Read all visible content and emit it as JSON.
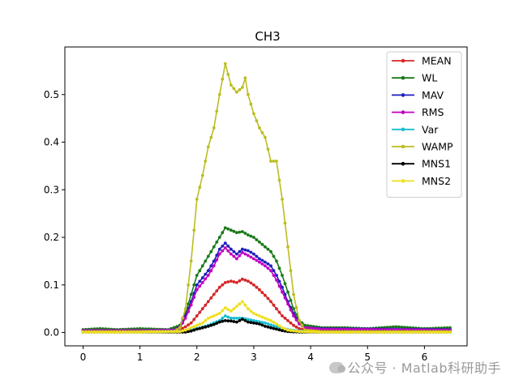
{
  "chart_data": {
    "type": "line",
    "title": "CH3",
    "xlabel": "",
    "ylabel": "",
    "xlim": [
      -0.32,
      6.75
    ],
    "ylim": [
      -0.028,
      0.6
    ],
    "xticks": [
      "0",
      "1",
      "2",
      "3",
      "4",
      "5",
      "6"
    ],
    "yticks": [
      "0.0",
      "0.1",
      "0.2",
      "0.3",
      "0.4",
      "0.5"
    ],
    "legend_position": "top-right",
    "grid": false,
    "series": [
      {
        "name": "MEAN",
        "color": "#d62728",
        "points": [
          [
            0,
            0.004
          ],
          [
            1,
            0.004
          ],
          [
            1.6,
            0.004
          ],
          [
            1.7,
            0.006
          ],
          [
            1.8,
            0.012
          ],
          [
            1.9,
            0.02
          ],
          [
            2.0,
            0.035
          ],
          [
            2.1,
            0.05
          ],
          [
            2.2,
            0.065
          ],
          [
            2.3,
            0.08
          ],
          [
            2.4,
            0.095
          ],
          [
            2.5,
            0.105
          ],
          [
            2.6,
            0.108
          ],
          [
            2.7,
            0.105
          ],
          [
            2.8,
            0.112
          ],
          [
            2.9,
            0.108
          ],
          [
            3.0,
            0.1
          ],
          [
            3.1,
            0.09
          ],
          [
            3.2,
            0.078
          ],
          [
            3.3,
            0.065
          ],
          [
            3.4,
            0.05
          ],
          [
            3.5,
            0.035
          ],
          [
            3.6,
            0.025
          ],
          [
            3.7,
            0.015
          ],
          [
            3.8,
            0.008
          ],
          [
            3.9,
            0.005
          ],
          [
            4.2,
            0.004
          ],
          [
            6.45,
            0.004
          ]
        ]
      },
      {
        "name": "WL",
        "color": "#1a7a1a",
        "points": [
          [
            0,
            0.006
          ],
          [
            0.3,
            0.008
          ],
          [
            0.6,
            0.006
          ],
          [
            1,
            0.008
          ],
          [
            1.5,
            0.006
          ],
          [
            1.7,
            0.015
          ],
          [
            1.8,
            0.04
          ],
          [
            1.9,
            0.08
          ],
          [
            2.0,
            0.12
          ],
          [
            2.1,
            0.14
          ],
          [
            2.2,
            0.16
          ],
          [
            2.3,
            0.18
          ],
          [
            2.4,
            0.2
          ],
          [
            2.5,
            0.22
          ],
          [
            2.6,
            0.215
          ],
          [
            2.7,
            0.21
          ],
          [
            2.8,
            0.212
          ],
          [
            2.9,
            0.205
          ],
          [
            3.0,
            0.2
          ],
          [
            3.1,
            0.19
          ],
          [
            3.2,
            0.18
          ],
          [
            3.3,
            0.17
          ],
          [
            3.4,
            0.15
          ],
          [
            3.5,
            0.12
          ],
          [
            3.6,
            0.085
          ],
          [
            3.7,
            0.05
          ],
          [
            3.8,
            0.025
          ],
          [
            3.9,
            0.015
          ],
          [
            4.2,
            0.01
          ],
          [
            4.6,
            0.01
          ],
          [
            5,
            0.008
          ],
          [
            5.5,
            0.012
          ],
          [
            6,
            0.008
          ],
          [
            6.45,
            0.01
          ]
        ]
      },
      {
        "name": "MAV",
        "color": "#1f1fbf",
        "points": [
          [
            0,
            0.004
          ],
          [
            1,
            0.004
          ],
          [
            1.6,
            0.005
          ],
          [
            1.7,
            0.012
          ],
          [
            1.8,
            0.035
          ],
          [
            1.9,
            0.065
          ],
          [
            2.0,
            0.1
          ],
          [
            2.1,
            0.115
          ],
          [
            2.2,
            0.13
          ],
          [
            2.3,
            0.15
          ],
          [
            2.4,
            0.175
          ],
          [
            2.5,
            0.188
          ],
          [
            2.6,
            0.175
          ],
          [
            2.7,
            0.165
          ],
          [
            2.8,
            0.175
          ],
          [
            2.9,
            0.172
          ],
          [
            3.0,
            0.165
          ],
          [
            3.1,
            0.155
          ],
          [
            3.2,
            0.148
          ],
          [
            3.3,
            0.14
          ],
          [
            3.4,
            0.12
          ],
          [
            3.5,
            0.095
          ],
          [
            3.6,
            0.065
          ],
          [
            3.7,
            0.04
          ],
          [
            3.8,
            0.02
          ],
          [
            3.9,
            0.01
          ],
          [
            4.2,
            0.008
          ],
          [
            6.45,
            0.006
          ]
        ]
      },
      {
        "name": "RMS",
        "color": "#c000c0",
        "points": [
          [
            0,
            0.004
          ],
          [
            1,
            0.004
          ],
          [
            1.6,
            0.005
          ],
          [
            1.7,
            0.01
          ],
          [
            1.8,
            0.03
          ],
          [
            1.9,
            0.058
          ],
          [
            2.0,
            0.09
          ],
          [
            2.1,
            0.105
          ],
          [
            2.2,
            0.12
          ],
          [
            2.3,
            0.14
          ],
          [
            2.4,
            0.165
          ],
          [
            2.5,
            0.178
          ],
          [
            2.6,
            0.165
          ],
          [
            2.7,
            0.155
          ],
          [
            2.8,
            0.168
          ],
          [
            2.9,
            0.162
          ],
          [
            3.0,
            0.155
          ],
          [
            3.1,
            0.148
          ],
          [
            3.2,
            0.14
          ],
          [
            3.3,
            0.13
          ],
          [
            3.4,
            0.11
          ],
          [
            3.5,
            0.085
          ],
          [
            3.6,
            0.06
          ],
          [
            3.7,
            0.035
          ],
          [
            3.8,
            0.018
          ],
          [
            3.9,
            0.01
          ],
          [
            4.2,
            0.007
          ],
          [
            6.45,
            0.005
          ]
        ]
      },
      {
        "name": "Var",
        "color": "#17becf",
        "points": [
          [
            0,
            0.002
          ],
          [
            1,
            0.002
          ],
          [
            1.8,
            0.003
          ],
          [
            2.0,
            0.008
          ],
          [
            2.2,
            0.015
          ],
          [
            2.4,
            0.025
          ],
          [
            2.5,
            0.035
          ],
          [
            2.6,
            0.03
          ],
          [
            2.8,
            0.03
          ],
          [
            3.0,
            0.025
          ],
          [
            3.2,
            0.02
          ],
          [
            3.4,
            0.012
          ],
          [
            3.6,
            0.006
          ],
          [
            3.8,
            0.003
          ],
          [
            4.2,
            0.002
          ],
          [
            6.45,
            0.002
          ]
        ]
      },
      {
        "name": "WAMP",
        "color": "#bcbd22",
        "points": [
          [
            0,
            0.002
          ],
          [
            1.6,
            0.002
          ],
          [
            1.7,
            0.01
          ],
          [
            1.8,
            0.05
          ],
          [
            1.9,
            0.15
          ],
          [
            2.0,
            0.28
          ],
          [
            2.1,
            0.33
          ],
          [
            2.2,
            0.39
          ],
          [
            2.3,
            0.43
          ],
          [
            2.4,
            0.5
          ],
          [
            2.5,
            0.565
          ],
          [
            2.6,
            0.52
          ],
          [
            2.7,
            0.505
          ],
          [
            2.8,
            0.515
          ],
          [
            2.85,
            0.535
          ],
          [
            2.9,
            0.5
          ],
          [
            3.0,
            0.46
          ],
          [
            3.1,
            0.43
          ],
          [
            3.2,
            0.41
          ],
          [
            3.3,
            0.36
          ],
          [
            3.4,
            0.36
          ],
          [
            3.5,
            0.28
          ],
          [
            3.6,
            0.18
          ],
          [
            3.7,
            0.08
          ],
          [
            3.8,
            0.025
          ],
          [
            3.9,
            0.005
          ],
          [
            4.2,
            0.002
          ],
          [
            6.45,
            0.002
          ]
        ]
      },
      {
        "name": "MNS1",
        "color": "#000000",
        "points": [
          [
            0,
            0.001
          ],
          [
            1,
            0.001
          ],
          [
            1.8,
            0.001
          ],
          [
            1.9,
            0.003
          ],
          [
            2.0,
            0.007
          ],
          [
            2.1,
            0.01
          ],
          [
            2.2,
            0.013
          ],
          [
            2.3,
            0.017
          ],
          [
            2.4,
            0.022
          ],
          [
            2.5,
            0.025
          ],
          [
            2.6,
            0.024
          ],
          [
            2.7,
            0.022
          ],
          [
            2.8,
            0.028
          ],
          [
            2.9,
            0.022
          ],
          [
            3.0,
            0.02
          ],
          [
            3.1,
            0.018
          ],
          [
            3.2,
            0.013
          ],
          [
            3.3,
            0.01
          ],
          [
            3.4,
            0.007
          ],
          [
            3.5,
            0.004
          ],
          [
            3.6,
            0.002
          ],
          [
            3.8,
            0.001
          ],
          [
            6.45,
            0.001
          ]
        ]
      },
      {
        "name": "MNS2",
        "color": "#f0e020",
        "points": [
          [
            0,
            0.001
          ],
          [
            1,
            0.001
          ],
          [
            1.7,
            0.002
          ],
          [
            1.8,
            0.005
          ],
          [
            1.9,
            0.01
          ],
          [
            2.0,
            0.015
          ],
          [
            2.1,
            0.02
          ],
          [
            2.2,
            0.03
          ],
          [
            2.3,
            0.035
          ],
          [
            2.4,
            0.04
          ],
          [
            2.5,
            0.052
          ],
          [
            2.6,
            0.045
          ],
          [
            2.7,
            0.055
          ],
          [
            2.8,
            0.065
          ],
          [
            2.9,
            0.05
          ],
          [
            3.0,
            0.04
          ],
          [
            3.1,
            0.035
          ],
          [
            3.2,
            0.03
          ],
          [
            3.3,
            0.025
          ],
          [
            3.4,
            0.018
          ],
          [
            3.5,
            0.01
          ],
          [
            3.6,
            0.005
          ],
          [
            3.8,
            0.002
          ],
          [
            4.2,
            0.001
          ],
          [
            6.45,
            0.001
          ]
        ]
      }
    ]
  },
  "watermark": "公众号 · Matlab科研助手"
}
